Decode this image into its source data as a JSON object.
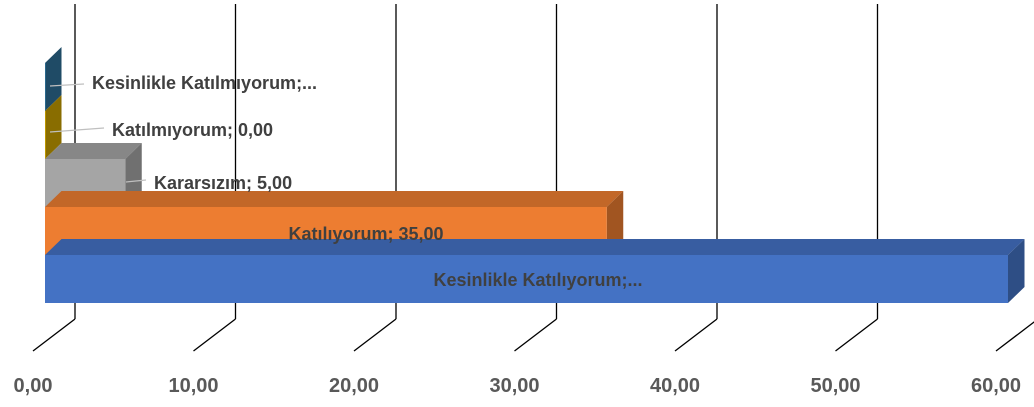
{
  "chart_data": {
    "type": "bar",
    "orientation": "horizontal",
    "style": "3d",
    "title": "",
    "xlabel": "",
    "ylabel": "",
    "xlim": [
      0,
      60
    ],
    "x_ticks": [
      "0,00",
      "10,00",
      "20,00",
      "30,00",
      "40,00",
      "50,00",
      "60,00"
    ],
    "grid": true,
    "legend": "none",
    "categories": [
      "Kesinlikle Katılıyorum",
      "Katılıyorum",
      "Kararsızım",
      "Katılmıyorum",
      "Kesinlikle Katılmıyorum"
    ],
    "values": [
      60.0,
      35.0,
      5.0,
      0.0,
      0.0
    ],
    "data_labels": [
      "Kesinlikle Katılıyorum;...",
      "Katılıyorum; 35,00",
      "Kararsızım; 5,00",
      "Katılmıyorum; 0,00",
      "Kesinlikle Katılmıyorum;..."
    ],
    "colors": [
      "#4472C4",
      "#ED7D31",
      "#A5A5A5",
      "#C9A100",
      "#2E6F96"
    ]
  }
}
